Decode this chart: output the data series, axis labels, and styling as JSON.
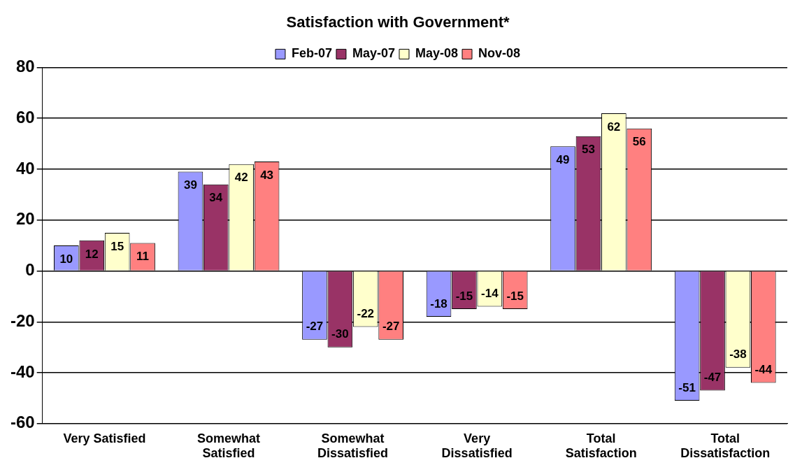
{
  "chart_data": {
    "type": "bar",
    "title": "Satisfaction with Government*",
    "categories": [
      "Very Satisfied",
      "Somewhat Satisfied",
      "Somewhat Dissatisfied",
      "Very Dissatisfied",
      "Total Satisfaction",
      "Total Dissatisfaction"
    ],
    "series": [
      {
        "name": "Feb-07",
        "color": "#9999ff",
        "values": [
          10,
          39,
          -27,
          -18,
          49,
          -51
        ]
      },
      {
        "name": "May-07",
        "color": "#993366",
        "values": [
          12,
          34,
          -30,
          -15,
          53,
          -47
        ]
      },
      {
        "name": "May-08",
        "color": "#ffffcc",
        "values": [
          15,
          42,
          -22,
          -14,
          62,
          -38
        ]
      },
      {
        "name": "Nov-08",
        "color": "#ff8080",
        "values": [
          11,
          43,
          -27,
          -15,
          56,
          -44
        ]
      }
    ],
    "ylim": [
      -60,
      80
    ],
    "yticks": [
      -60,
      -40,
      -20,
      0,
      20,
      40,
      60,
      80
    ],
    "grid": "y",
    "legend": "top",
    "data_labels": true
  }
}
